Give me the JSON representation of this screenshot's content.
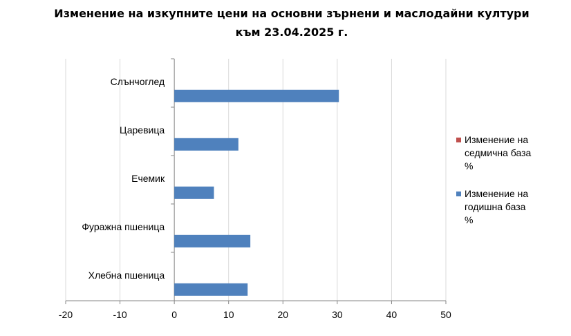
{
  "chart_data": {
    "type": "bar",
    "orientation": "horizontal",
    "title": "Изменение на изкупните цени на основни зърнени и маслодайни култури към 23.04.2025 г.",
    "title_lines": [
      "Изменение на изкупните цени на основни зърнени и маслодайни култури",
      "към 23.04.2025 г."
    ],
    "xlabel": "",
    "ylabel": "",
    "categories": [
      "Хлебна пшеница",
      "Фуражна пшеница",
      "Ечемик",
      "Царевица",
      "Слънчоглед"
    ],
    "series": [
      {
        "name": "Изменение на седмична база %",
        "legend_lines": [
          "Изменение на",
          "седмична база",
          "%"
        ],
        "color": "#C0504D",
        "values": [
          0,
          0,
          0,
          0,
          0
        ]
      },
      {
        "name": "Изменение на годишна база %",
        "legend_lines": [
          "Изменение на",
          "годишна база",
          "%"
        ],
        "color": "#4F81BD",
        "values": [
          13.5,
          14,
          7.3,
          11.8,
          30.3
        ]
      }
    ],
    "xlim": [
      -20,
      50
    ],
    "xticks": [
      "-20",
      "-10",
      "0",
      "10",
      "20",
      "30",
      "40",
      "50"
    ],
    "grid": true,
    "legend_position": "right"
  }
}
